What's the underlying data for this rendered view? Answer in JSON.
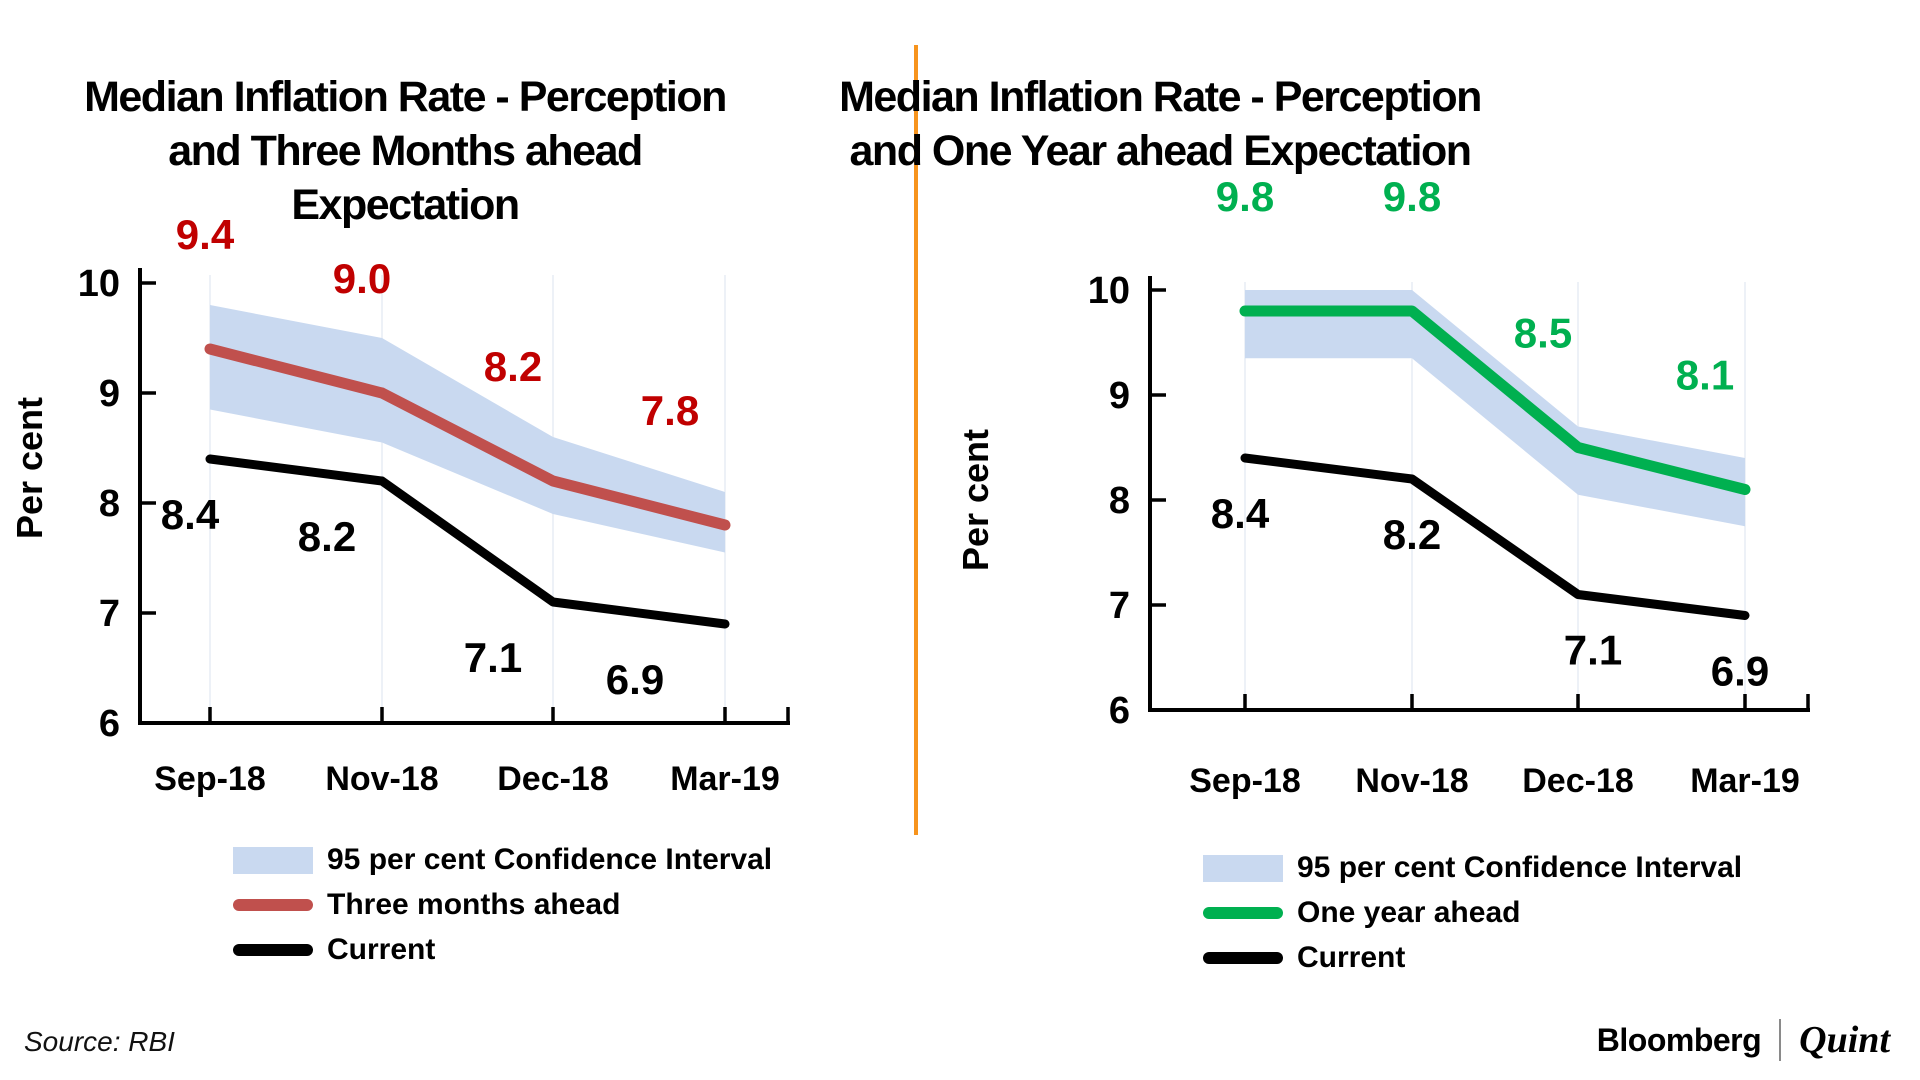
{
  "source_note": "Source: RBI",
  "branding": {
    "name1": "Bloomberg",
    "name2": "Quint"
  },
  "divider_color": "#F7941D",
  "chart_data": [
    {
      "type": "line",
      "title": "Median Inflation Rate - Perception and Three Months ahead Expectation",
      "title_lines": [
        "Median Inflation Rate - Perception",
        "and Three Months ahead Expectation"
      ],
      "ylabel": "Per cent",
      "xlabel": "",
      "ylim": [
        6,
        10
      ],
      "yticks": [
        6,
        7,
        8,
        9,
        10
      ],
      "grid": false,
      "legend_position": "bottom-left",
      "categories": [
        "Sep-18",
        "Nov-18",
        "Dec-18",
        "Mar-19"
      ],
      "series": [
        {
          "name": "Three months ahead",
          "values": [
            9.4,
            9.0,
            8.2,
            7.8
          ],
          "color": "#C0504D",
          "label_color": "#C00000"
        },
        {
          "name": "Current",
          "values": [
            8.4,
            8.2,
            7.1,
            6.9
          ],
          "color": "#000000",
          "label_color": "#000000"
        }
      ],
      "confidence_band": {
        "name": "95 per cent Confidence Interval",
        "upper": [
          9.8,
          9.5,
          8.6,
          8.1
        ],
        "lower": [
          8.85,
          8.55,
          7.9,
          7.55
        ],
        "color": "#C9D9F0"
      },
      "legend": [
        {
          "label": "95 per cent Confidence Interval",
          "swatch": "band"
        },
        {
          "label": "Three months ahead",
          "swatch": "line",
          "color": "#C0504D"
        },
        {
          "label": "Current",
          "swatch": "line",
          "color": "#000000"
        }
      ]
    },
    {
      "type": "line",
      "title": "Median Inflation Rate - Perception and One Year ahead Expectation",
      "title_lines": [
        "Median Inflation Rate - Perception",
        "and One Year ahead Expectation"
      ],
      "ylabel": "Per cent",
      "xlabel": "",
      "ylim": [
        6,
        10
      ],
      "yticks": [
        6,
        7,
        8,
        9,
        10
      ],
      "grid": false,
      "legend_position": "bottom-left",
      "categories": [
        "Sep-18",
        "Nov-18",
        "Dec-18",
        "Mar-19"
      ],
      "series": [
        {
          "name": "One year ahead",
          "values": [
            9.8,
            9.8,
            8.5,
            8.1
          ],
          "color": "#00B050",
          "label_color": "#00B050"
        },
        {
          "name": "Current",
          "values": [
            8.4,
            8.2,
            7.1,
            6.9
          ],
          "color": "#000000",
          "label_color": "#000000"
        }
      ],
      "confidence_band": {
        "name": "95 per cent Confidence Interval",
        "upper": [
          10.0,
          10.0,
          8.7,
          8.4
        ],
        "lower": [
          9.35,
          9.35,
          8.05,
          7.75
        ],
        "color": "#C9D9F0"
      },
      "legend": [
        {
          "label": "95 per cent Confidence Interval",
          "swatch": "band"
        },
        {
          "label": "One year ahead",
          "swatch": "line",
          "color": "#00B050"
        },
        {
          "label": "Current",
          "swatch": "line",
          "color": "#000000"
        }
      ]
    }
  ]
}
